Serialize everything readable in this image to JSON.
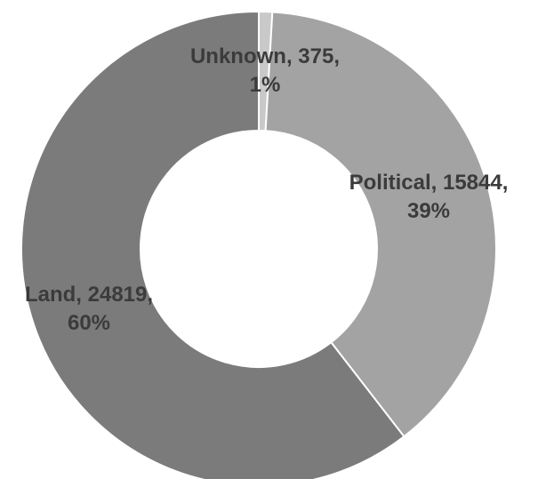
{
  "chart_data": {
    "type": "pie",
    "donut": true,
    "title": "",
    "legend": "none",
    "slices": [
      {
        "label": "Unknown",
        "value": 375,
        "percent": "1%",
        "color": "#c9c9c9"
      },
      {
        "label": "Political",
        "value": 15844,
        "percent": "39%",
        "color": "#a3a3a3"
      },
      {
        "label": "Land",
        "value": 24819,
        "percent": "60%",
        "color": "#7b7b7b"
      }
    ],
    "data_labels": [
      {
        "line1": "Unknown, 375,",
        "line2": "1%"
      },
      {
        "line1": "Political, 15844,",
        "line2": "39%"
      },
      {
        "line1": "Land, 24819,",
        "line2": "60%"
      }
    ]
  }
}
